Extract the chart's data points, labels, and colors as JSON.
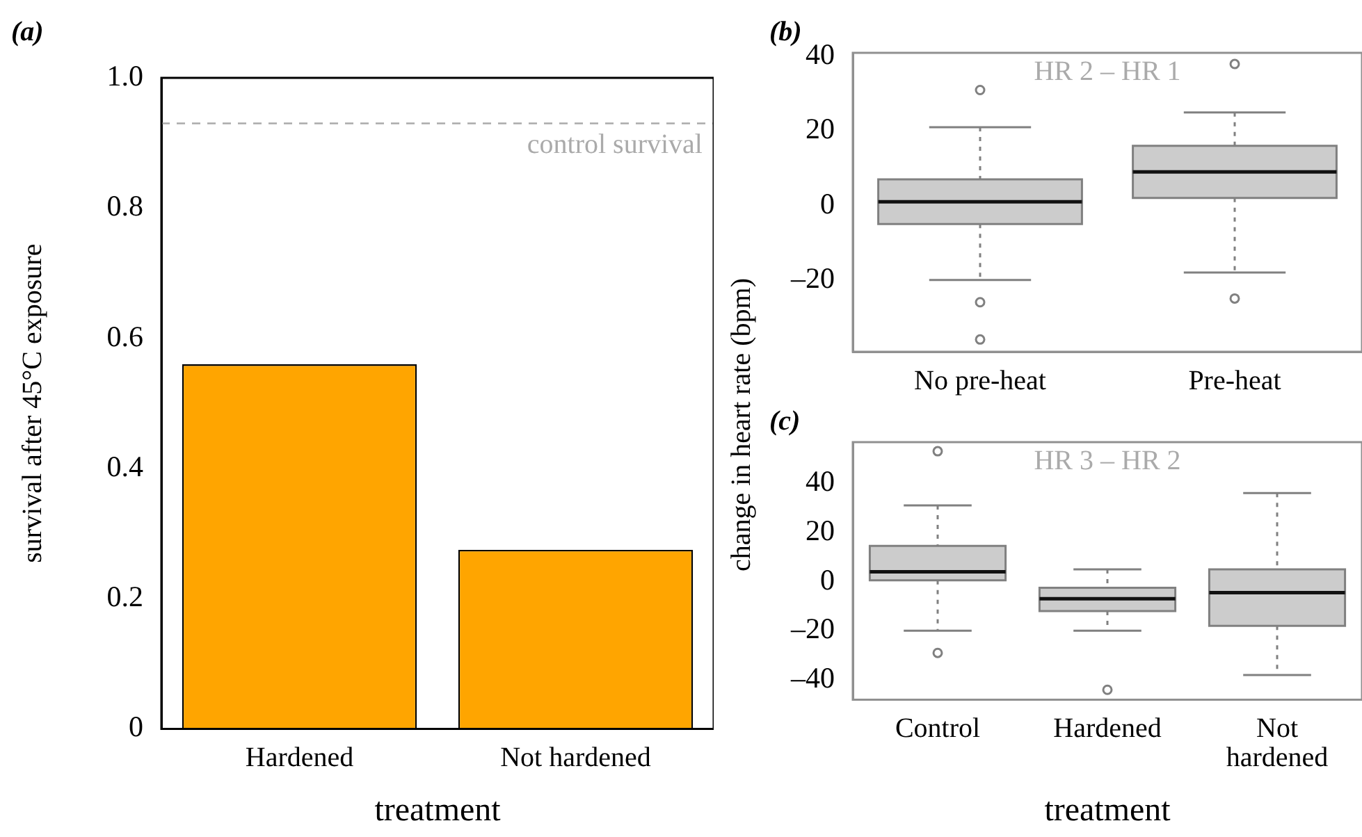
{
  "chart_data": [
    {
      "type": "bar",
      "title": "(a)",
      "xlabel": "treatment",
      "ylabel": "survival after 45°C exposure",
      "categories": [
        "Hardened",
        "Not hardened"
      ],
      "values": [
        0.56,
        0.275
      ],
      "color": "#ffa500",
      "ylim": [
        0,
        1
      ],
      "yticks": [
        {
          "value": 0,
          "label": "0"
        },
        0.2,
        0.4,
        0.6,
        0.8,
        {
          "value": 1,
          "label": "1.0"
        }
      ],
      "grid": false,
      "legend": false,
      "ref_lines": [
        {
          "axis": "y",
          "value": 0.93,
          "label": "control survival",
          "color": "#aaaaaa",
          "line_style": "dashed"
        }
      ]
    },
    {
      "type": "box",
      "title": "(b)",
      "ylabel": "change in heart rate (bpm)",
      "categories": [
        "No pre-heat",
        "Pre-heat"
      ],
      "color": "#cccccc",
      "ylim": [
        -39.3,
        41
      ],
      "yticks": [
        {
          "value": -20,
          "label": "–20"
        },
        0,
        20,
        40
      ],
      "grid": false,
      "legend": false,
      "annotations": [
        "HR 2 – HR 1"
      ],
      "boxes": [
        {
          "low": -20,
          "q1": -5,
          "median": 1,
          "q3": 7,
          "high": 21,
          "outliers": [
            31,
            -26,
            -36
          ]
        },
        {
          "low": -18,
          "q1": 2,
          "median": 9,
          "q3": 16,
          "high": 25,
          "outliers": [
            38,
            -25
          ]
        }
      ]
    },
    {
      "type": "box",
      "title": "(c)",
      "xlabel": "treatment",
      "categories": [
        "Control",
        "Hardened",
        "Not hardened"
      ],
      "color": "#cccccc",
      "ylim": [
        -48,
        56.7
      ],
      "yticks": [
        {
          "value": -40,
          "label": "–40"
        },
        {
          "value": -20,
          "label": "–20"
        },
        0,
        20,
        40
      ],
      "grid": false,
      "legend": false,
      "annotations": [
        "HR 3 – HR 2"
      ],
      "boxes": [
        {
          "low": -20,
          "q1": 0.5,
          "median": 4,
          "q3": 14.5,
          "high": 31,
          "outliers": [
            53,
            -29
          ]
        },
        {
          "low": -20,
          "q1": -12,
          "median": -7,
          "q3": -2.5,
          "high": 5,
          "outliers": [
            -44
          ]
        },
        {
          "low": -38,
          "q1": -18,
          "median": -4.5,
          "q3": 5,
          "high": 36
        }
      ]
    }
  ]
}
